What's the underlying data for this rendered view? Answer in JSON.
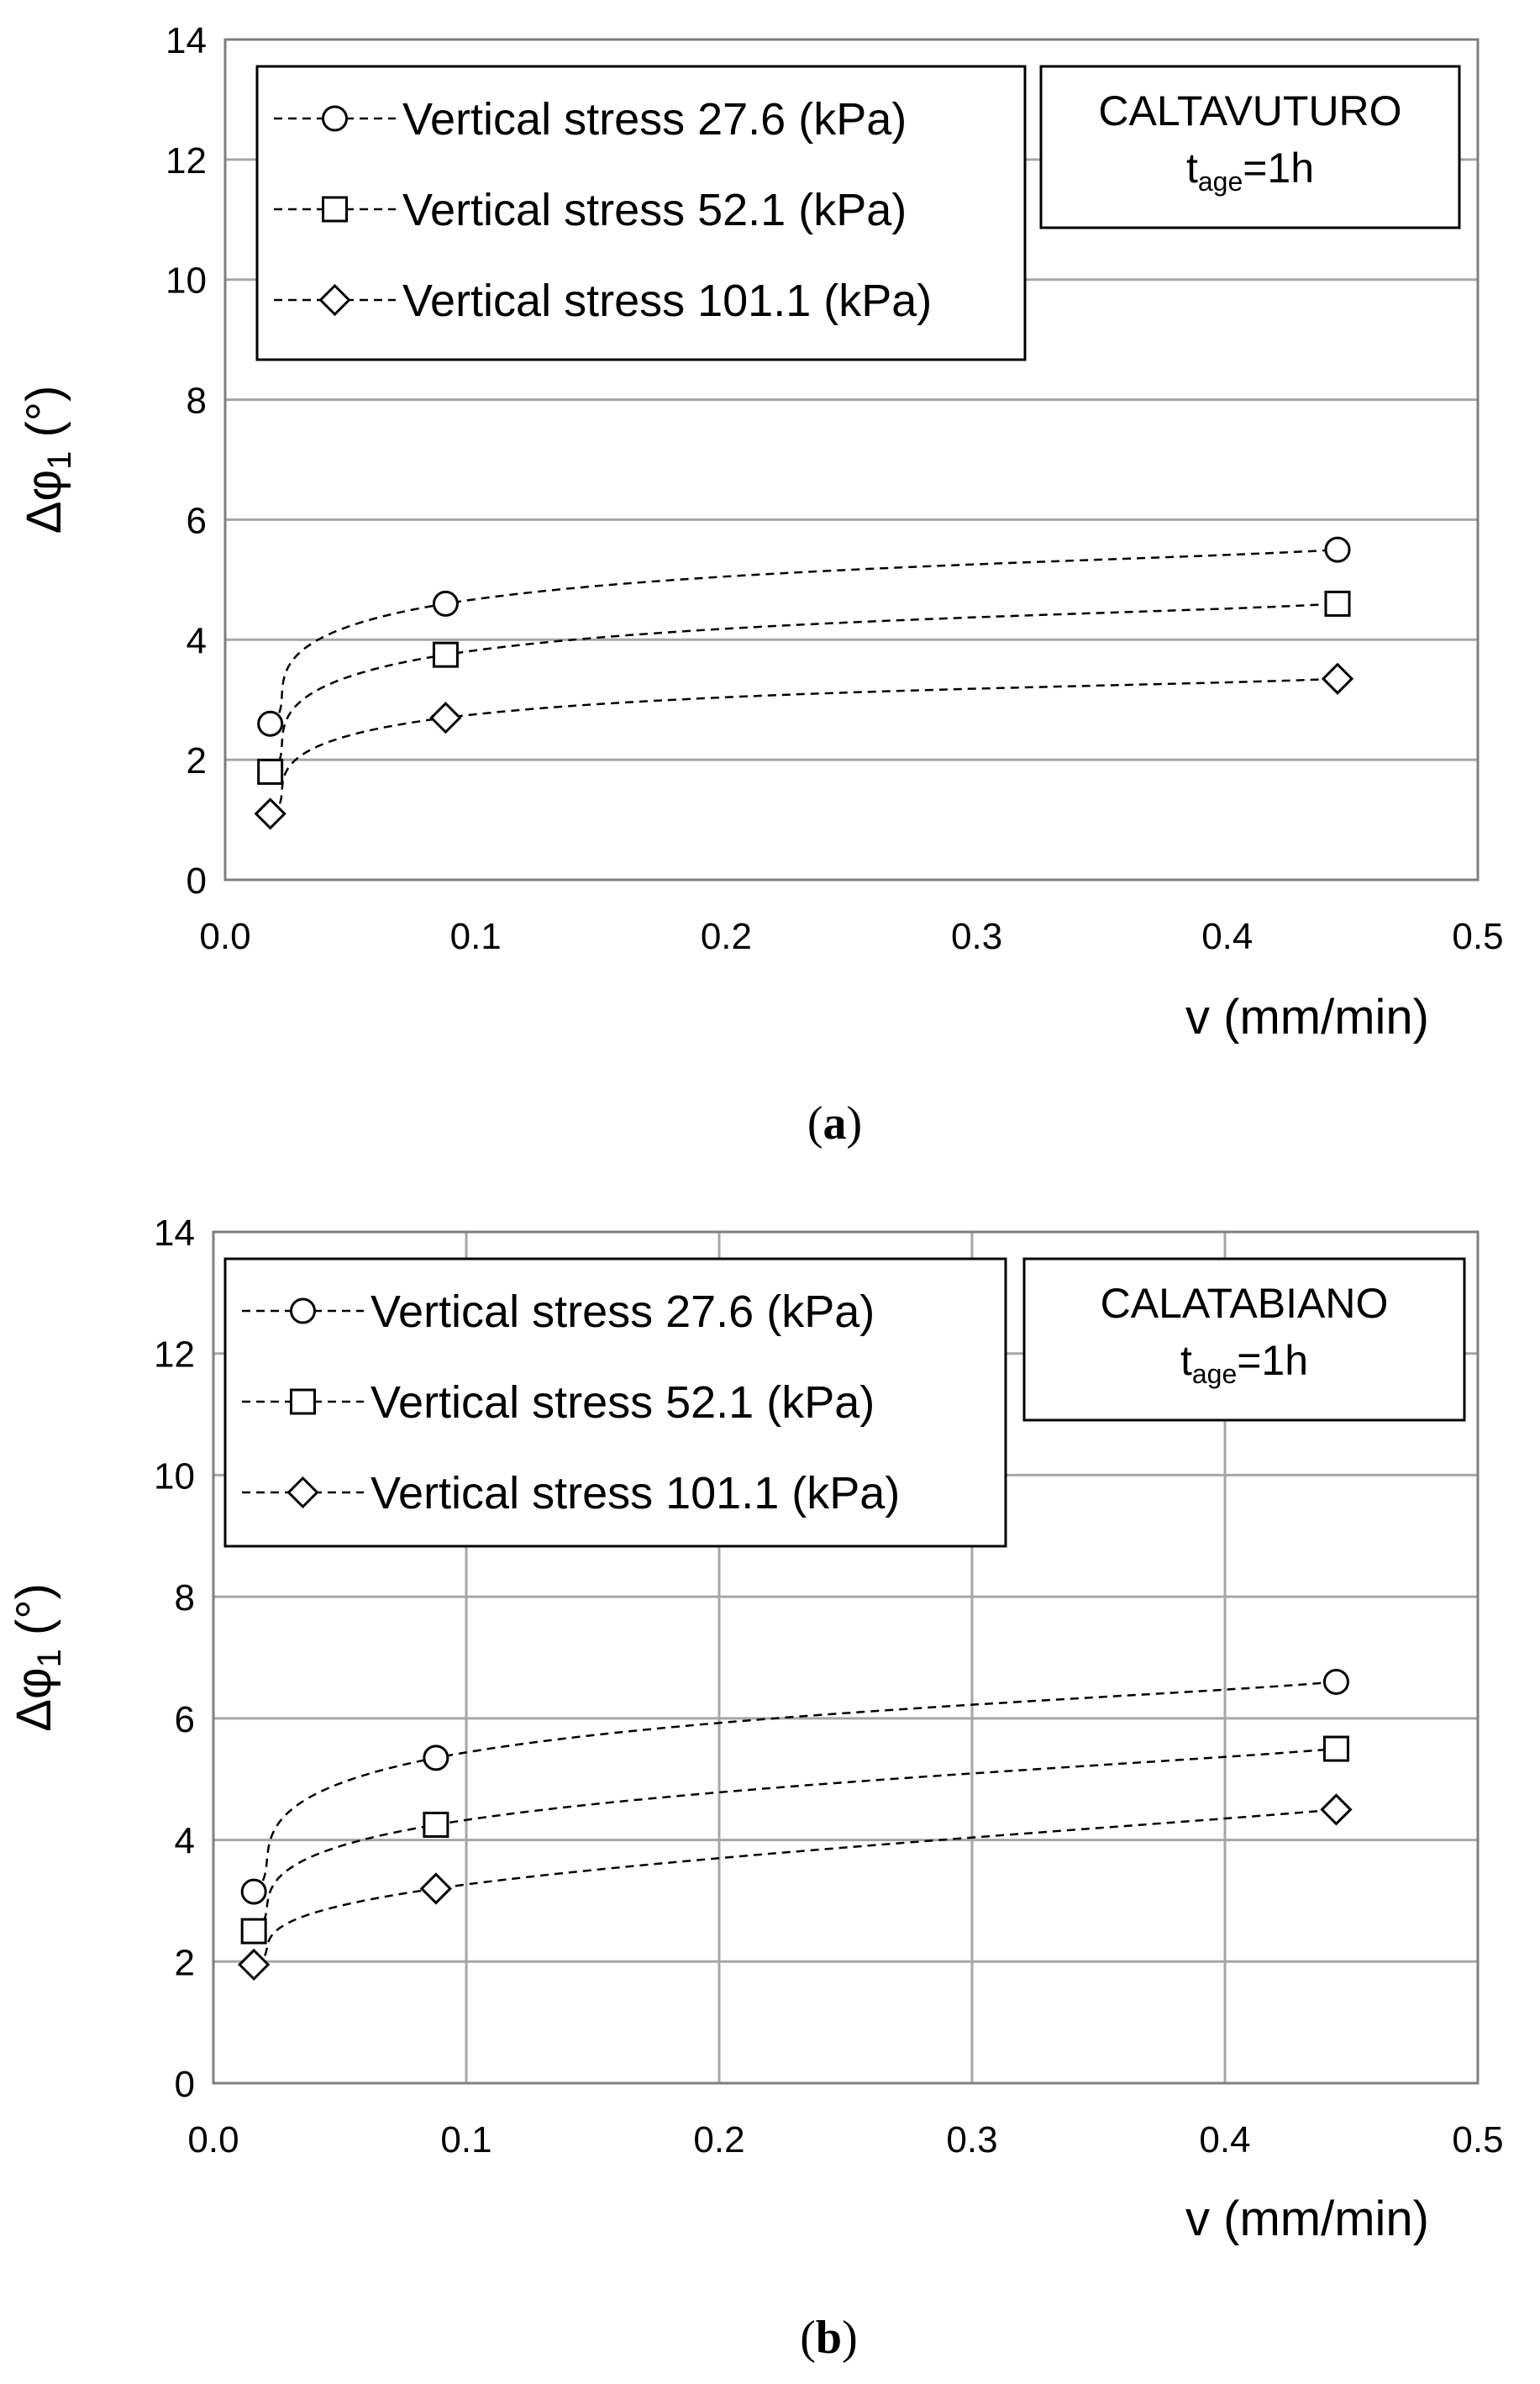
{
  "chart_data": [
    {
      "type": "line",
      "panel_caption": {
        "open": "(",
        "letter": "a",
        "close": ")"
      },
      "site_label": "CALTAVUTURO",
      "t_age": {
        "symbol": "t",
        "subscript": "age",
        "value": "=1h"
      },
      "ylabel": {
        "symbol": "Δφ",
        "subscript": "1",
        "unit": " (°)"
      },
      "xlabel": "v (mm/min)",
      "xlim": [
        0.0,
        0.5
      ],
      "ylim": [
        0,
        14
      ],
      "x_ticks": [
        0.0,
        0.1,
        0.2,
        0.3,
        0.4,
        0.5
      ],
      "x_tick_labels": [
        "0.0",
        "0.1",
        "0.2",
        "0.3",
        "0.4",
        "0.5"
      ],
      "y_ticks": [
        0,
        2,
        4,
        6,
        8,
        10,
        12,
        14
      ],
      "y_tick_labels": [
        "0",
        "2",
        "4",
        "6",
        "8",
        "10",
        "12",
        "14"
      ],
      "grid": "horizontal",
      "legend_position": "top-left",
      "series": [
        {
          "name": "Vertical stress 27.6 (kPa)",
          "marker": "circle",
          "x": [
            0.018,
            0.088,
            0.444
          ],
          "values": [
            2.6,
            4.6,
            5.5
          ]
        },
        {
          "name": "Vertical stress 52.1 (kPa)",
          "marker": "square",
          "x": [
            0.018,
            0.088,
            0.444
          ],
          "values": [
            1.8,
            3.75,
            4.6
          ]
        },
        {
          "name": "Vertical stress 101.1 (kPa)",
          "marker": "diamond",
          "x": [
            0.018,
            0.088,
            0.444
          ],
          "values": [
            1.1,
            2.7,
            3.35
          ]
        }
      ]
    },
    {
      "type": "line",
      "panel_caption": {
        "open": "(",
        "letter": "b",
        "close": ")"
      },
      "site_label": "CALATABIANO",
      "t_age": {
        "symbol": "t",
        "subscript": "age",
        "value": "=1h"
      },
      "ylabel": {
        "symbol": "Δφ",
        "subscript": "1",
        "unit": " (°)"
      },
      "xlabel": "v (mm/min)",
      "xlim": [
        0.0,
        0.5
      ],
      "ylim": [
        0,
        14
      ],
      "x_ticks": [
        0.0,
        0.1,
        0.2,
        0.3,
        0.4,
        0.5
      ],
      "x_tick_labels": [
        "0.0",
        "0.1",
        "0.2",
        "0.3",
        "0.4",
        "0.5"
      ],
      "y_ticks": [
        0,
        2,
        4,
        6,
        8,
        10,
        12,
        14
      ],
      "y_tick_labels": [
        "0",
        "2",
        "4",
        "6",
        "8",
        "10",
        "12",
        "14"
      ],
      "grid": "both",
      "legend_position": "top-left",
      "series": [
        {
          "name": "Vertical stress 27.6 (kPa)",
          "marker": "circle",
          "x": [
            0.016,
            0.088,
            0.444
          ],
          "values": [
            3.15,
            5.35,
            6.6
          ]
        },
        {
          "name": "Vertical stress 52.1 (kPa)",
          "marker": "square",
          "x": [
            0.016,
            0.088,
            0.444
          ],
          "values": [
            2.5,
            4.25,
            5.5
          ]
        },
        {
          "name": "Vertical stress 101.1 (kPa)",
          "marker": "diamond",
          "x": [
            0.016,
            0.088,
            0.444
          ],
          "values": [
            1.95,
            3.2,
            4.5
          ]
        }
      ]
    }
  ]
}
